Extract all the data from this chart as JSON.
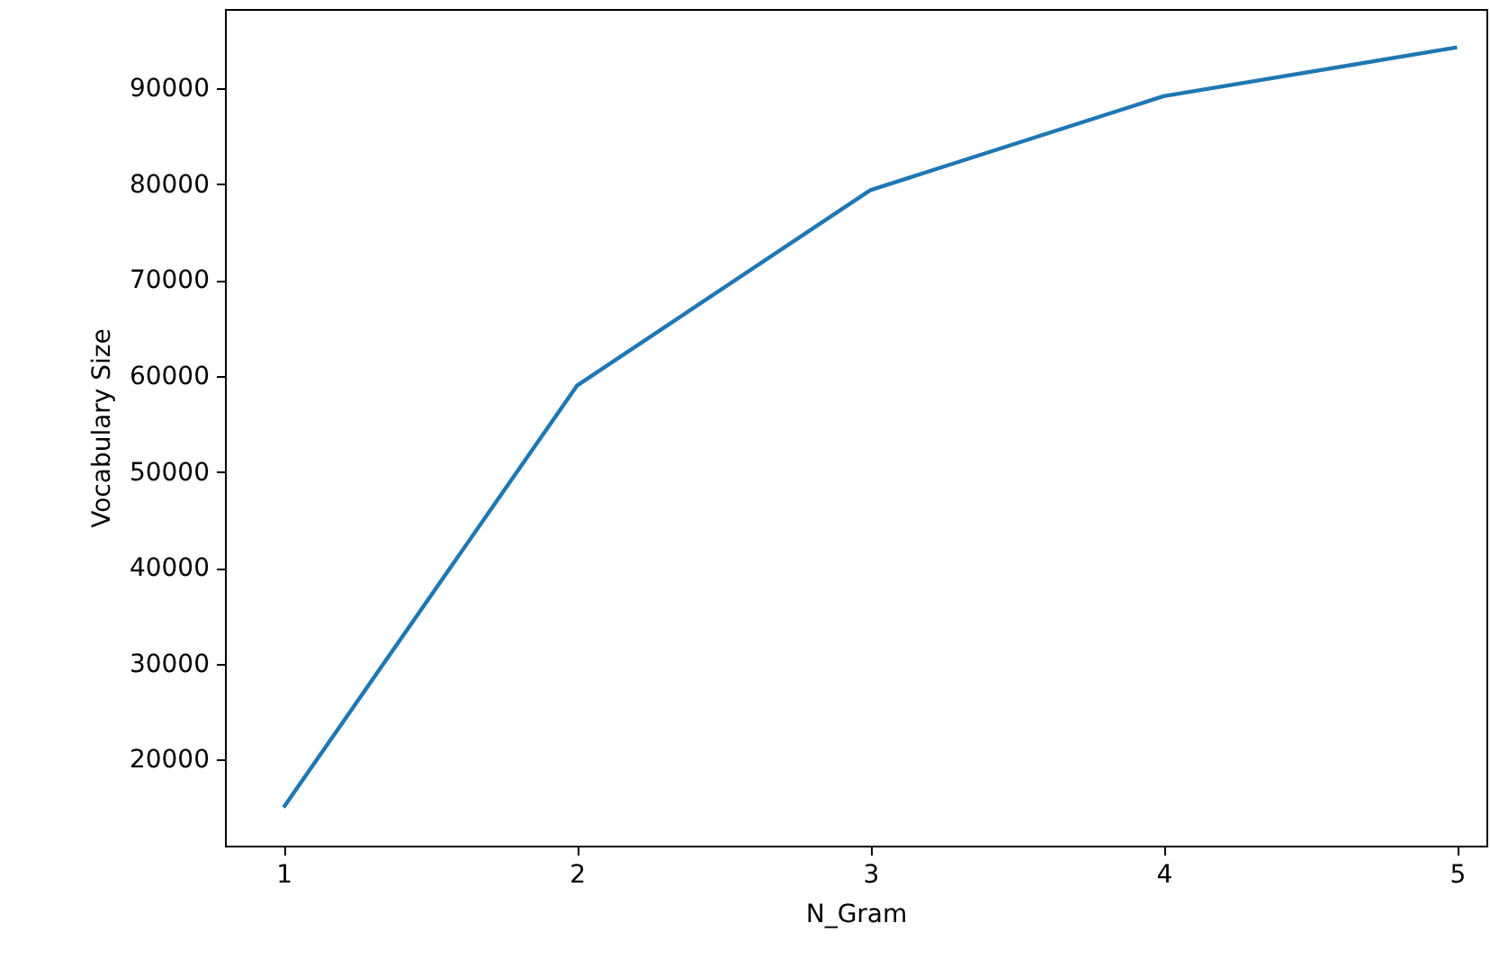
{
  "chart_data": {
    "type": "line",
    "xlabel": "N_Gram",
    "ylabel": "Vocabulary Size",
    "x": [
      1,
      2,
      3,
      4,
      5
    ],
    "series": [
      {
        "color": "#1f77b4",
        "values": [
          15000,
          59000,
          79400,
          89200,
          94300
        ]
      }
    ],
    "xlim": [
      0.8,
      5.1
    ],
    "xticks": [
      1,
      2,
      3,
      4,
      5
    ],
    "ylim": [
      11000,
      98300
    ],
    "yticks": [
      20000,
      30000,
      40000,
      50000,
      60000,
      70000,
      80000,
      90000
    ],
    "grid": false,
    "marker": "none",
    "line_style": "solid"
  }
}
